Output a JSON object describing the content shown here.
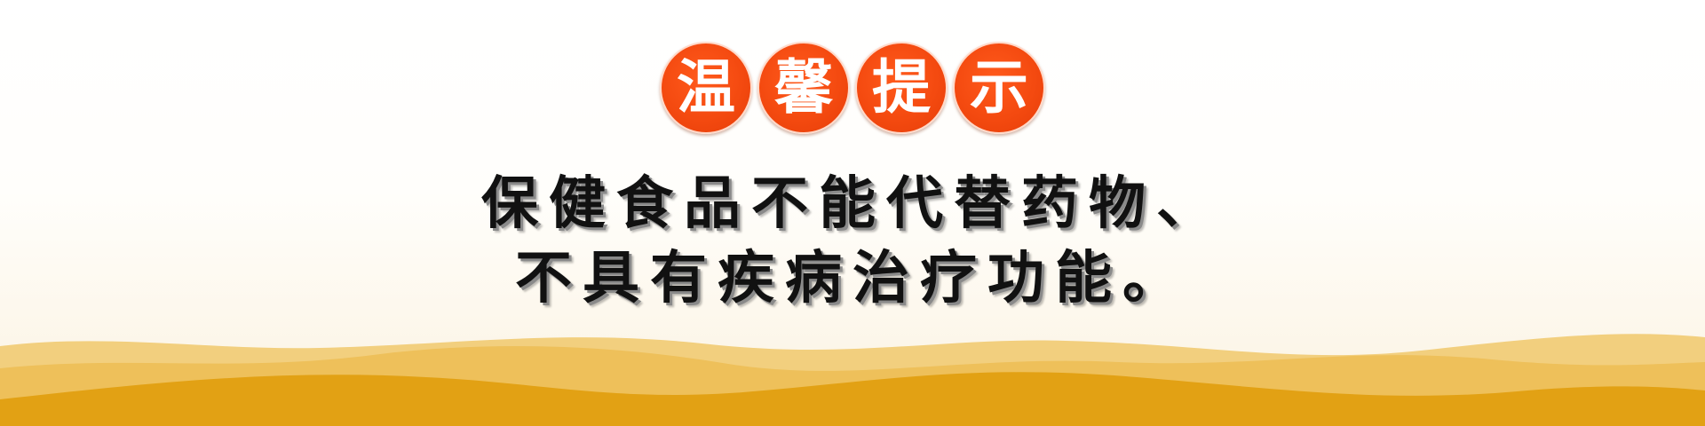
{
  "heading": {
    "chars": [
      "温",
      "馨",
      "提",
      "示"
    ]
  },
  "message": {
    "line1": "保健食品不能代替药物、",
    "line2": "不具有疾病治疗功能。"
  },
  "colors": {
    "badge": "#f44a10",
    "wave_dark": "#e2a114",
    "wave_light": "#eec05a"
  }
}
